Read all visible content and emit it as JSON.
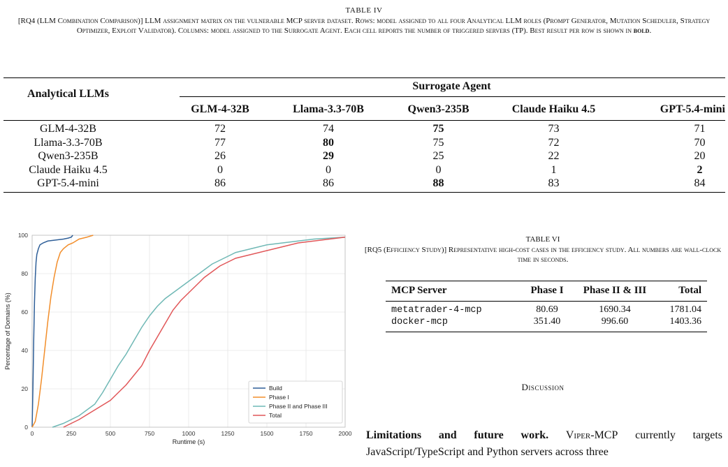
{
  "table4": {
    "label": "TABLE IV",
    "caption": "[RQ4 (LLM Combination Comparison)] LLM assignment matrix on the vulnerable MCP server dataset. Rows: model assigned to all four Analytical LLM roles (Prompt Generator, Mutation Scheduler, Strategy Optimizer, Exploit Validator). Columns: model assigned to the Surrogate Agent. Each cell reports the number of triggered servers (TP). Best result per row is shown in",
    "caption_bold": "bold",
    "caption_end": ".",
    "row_header": "Analytical LLMs",
    "col_group": "Surrogate Agent",
    "columns": [
      "GLM-4-32B",
      "Llama-3.3-70B",
      "Qwen3-235B",
      "Claude Haiku 4.5",
      "GPT-5.4-mini"
    ],
    "rows": [
      {
        "model": "GLM-4-32B",
        "values": [
          "72",
          "74",
          "75",
          "73",
          "71"
        ],
        "best": 2
      },
      {
        "model": "Llama-3.3-70B",
        "values": [
          "77",
          "80",
          "75",
          "72",
          "70"
        ],
        "best": 1
      },
      {
        "model": "Qwen3-235B",
        "values": [
          "26",
          "29",
          "25",
          "22",
          "20"
        ],
        "best": 1
      },
      {
        "model": "Claude Haiku 4.5",
        "values": [
          "0",
          "0",
          "0",
          "1",
          "2"
        ],
        "best": 4
      },
      {
        "model": "GPT-5.4-mini",
        "values": [
          "86",
          "86",
          "88",
          "83",
          "84"
        ],
        "best": 2
      }
    ]
  },
  "table6": {
    "label": "TABLE VI",
    "caption": "[RQ5 (Efficiency Study)] Representative high-cost cases in the efficiency study. All numbers are wall-clock time in seconds.",
    "headers": [
      "MCP Server",
      "Phase I",
      "Phase II & III",
      "Total"
    ],
    "rows": [
      {
        "server": "metatrader-4-mcp",
        "phase1": "80.69",
        "phase23": "1690.34",
        "total": "1781.04"
      },
      {
        "server": "docker-mcp",
        "phase1": "351.40",
        "phase23": "996.60",
        "total": "1403.36"
      }
    ]
  },
  "discussion": {
    "heading": "Discussion",
    "lead": "Limitations and future work.",
    "tool": "Viper-MCP",
    "text_before": "",
    "text_after": "currently targets JavaScript/TypeScript and Python servers across three"
  },
  "chart_data": {
    "type": "line",
    "xlabel": "Runtime (s)",
    "ylabel": "Percentage of Domains (%)",
    "xlim": [
      0,
      2000
    ],
    "ylim": [
      0,
      100
    ],
    "xticks": [
      0,
      250,
      500,
      750,
      1000,
      1250,
      1500,
      1750,
      2000
    ],
    "yticks": [
      0,
      20,
      40,
      60,
      80,
      100
    ],
    "grid": true,
    "legend_position": "lower-right",
    "series": [
      {
        "name": "Build",
        "color": "#2f5f98",
        "x": [
          0,
          5,
          10,
          15,
          20,
          25,
          30,
          40,
          50,
          70,
          100,
          150,
          200,
          230,
          250,
          260
        ],
        "y": [
          0,
          20,
          45,
          65,
          78,
          86,
          90,
          93,
          95,
          96,
          97,
          97.5,
          98,
          98.5,
          99,
          100
        ]
      },
      {
        "name": "Phase I",
        "color": "#f28e2b",
        "x": [
          0,
          20,
          40,
          60,
          80,
          100,
          120,
          140,
          160,
          180,
          200,
          230,
          260,
          300,
          350,
          390
        ],
        "y": [
          0,
          3,
          12,
          25,
          40,
          55,
          68,
          78,
          86,
          91,
          93,
          95,
          96,
          98,
          99,
          100
        ]
      },
      {
        "name": "Phase II and Phase III",
        "color": "#6fb8b5",
        "x": [
          130,
          200,
          300,
          400,
          450,
          500,
          550,
          600,
          650,
          700,
          750,
          800,
          850,
          900,
          950,
          1000,
          1050,
          1100,
          1150,
          1200,
          1250,
          1300,
          1400,
          1500,
          1600,
          1700,
          1800,
          1900,
          2000
        ],
        "y": [
          0,
          2,
          6,
          12,
          18,
          25,
          32,
          38,
          45,
          52,
          58,
          63,
          67,
          70,
          73,
          76,
          79,
          82,
          85,
          87,
          89,
          91,
          93,
          95,
          96,
          97,
          98,
          98.5,
          99
        ]
      },
      {
        "name": "Total",
        "color": "#e15759",
        "x": [
          200,
          300,
          400,
          500,
          550,
          600,
          650,
          700,
          750,
          800,
          850,
          900,
          950,
          1000,
          1050,
          1100,
          1150,
          1200,
          1250,
          1300,
          1350,
          1400,
          1500,
          1600,
          1700,
          1800,
          1900,
          2000
        ],
        "y": [
          0,
          4,
          9,
          14,
          18,
          22,
          27,
          32,
          40,
          47,
          54,
          61,
          66,
          70,
          74,
          78,
          81,
          84,
          86,
          88,
          89,
          90,
          92,
          94,
          96,
          97,
          98,
          99
        ]
      }
    ]
  }
}
